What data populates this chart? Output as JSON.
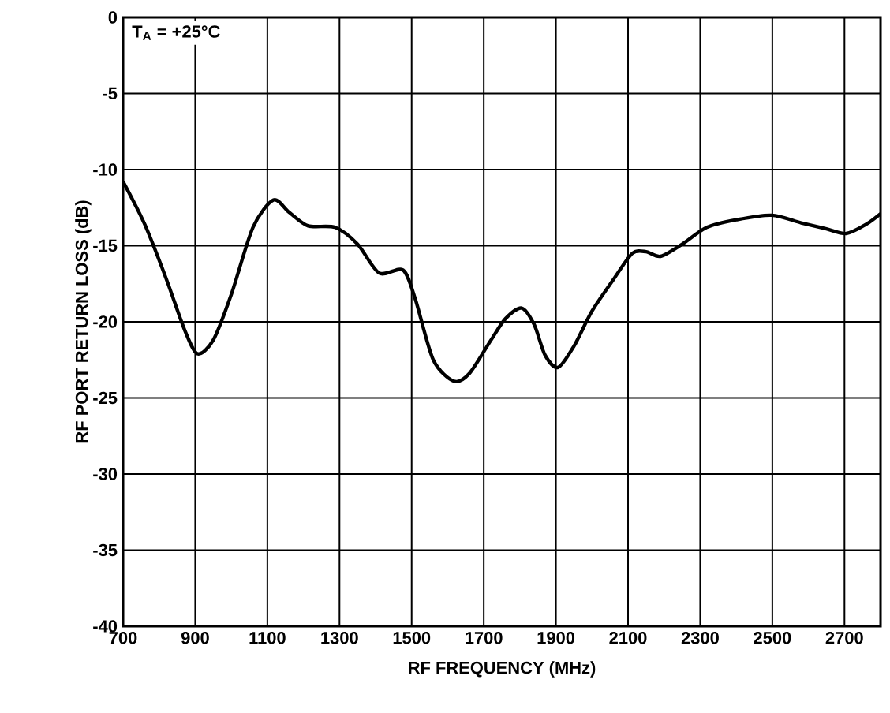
{
  "chart_data": {
    "type": "line",
    "xlabel": "RF FREQUENCY (MHz)",
    "ylabel": "RF PORT RETURN LOSS (dB)",
    "annotations": [
      "T$_{A}$ = +25°C"
    ],
    "x": [
      700,
      760,
      820,
      870,
      906,
      950,
      1000,
      1060,
      1117,
      1160,
      1213,
      1288,
      1350,
      1410,
      1476,
      1510,
      1560,
      1617,
      1660,
      1720,
      1760,
      1805,
      1840,
      1870,
      1906,
      1950,
      2000,
      2060,
      2112,
      2150,
      2190,
      2250,
      2318,
      2400,
      2498,
      2580,
      2650,
      2705,
      2760,
      2800
    ],
    "series": [
      {
        "color": "#000000",
        "values": [
          -10.8,
          -13.6,
          -17.2,
          -20.5,
          -22.1,
          -21.2,
          -18.2,
          -13.8,
          -12.0,
          -12.8,
          -13.7,
          -13.8,
          -14.9,
          -16.8,
          -16.6,
          -18.5,
          -22.5,
          -23.9,
          -23.4,
          -21.2,
          -19.8,
          -19.1,
          -20.2,
          -22.2,
          -23.0,
          -21.6,
          -19.3,
          -17.2,
          -15.5,
          -15.4,
          -15.7,
          -14.9,
          -13.8,
          -13.3,
          -13.0,
          -13.5,
          -13.9,
          -14.2,
          -13.6,
          -12.9
        ]
      }
    ],
    "xlim": [
      700,
      2800
    ],
    "ylim": [
      -40,
      0
    ],
    "xticks": [
      700,
      900,
      1100,
      1300,
      1500,
      1700,
      1900,
      2100,
      2300,
      2500,
      2700
    ],
    "yticks": [
      -40,
      -35,
      -30,
      -25,
      -20,
      -15,
      -10,
      -5,
      0
    ],
    "grid": true,
    "marker": "none",
    "line_style": "solid"
  }
}
